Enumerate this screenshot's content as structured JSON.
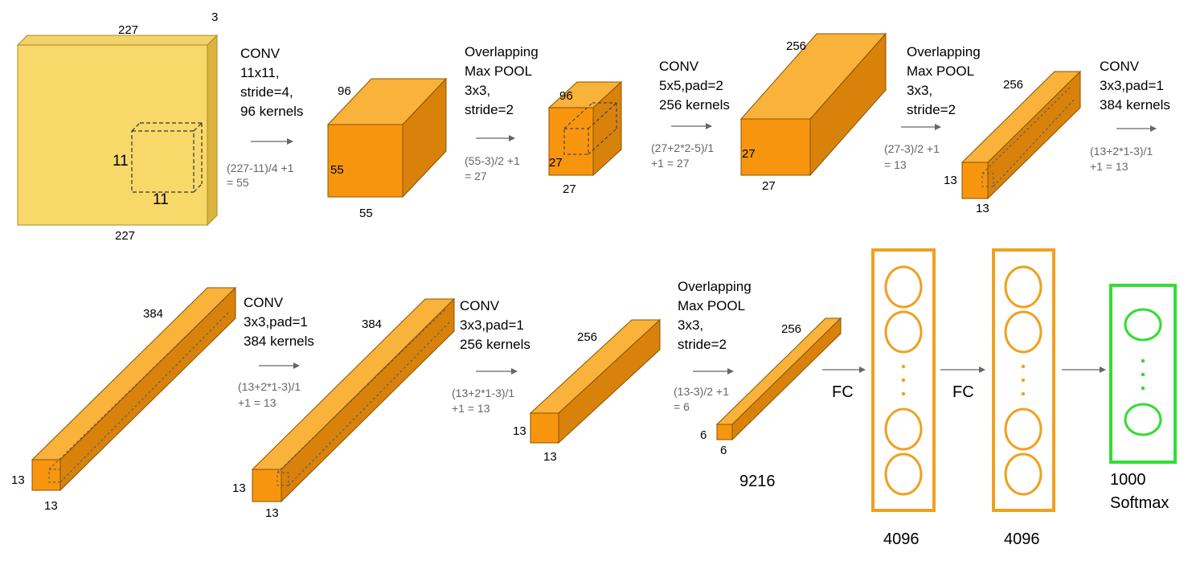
{
  "colors": {
    "input_front": "#f9d86a",
    "input_top": "#f2d36a",
    "input_side": "#d9b440",
    "box_front": "#f7960e",
    "box_top": "#f9b23a",
    "box_side": "#d8820c",
    "fc_stroke": "#f0a020",
    "softmax_stroke": "#33dd33",
    "arrow": "#666666",
    "formula_text": "#666666"
  },
  "input": {
    "width": "227",
    "height": "227",
    "depth": "3",
    "kernel_h": "11",
    "kernel_w": "11"
  },
  "step1": {
    "lines": [
      "CONV",
      "11x11,",
      "stride=4,",
      "96 kernels"
    ],
    "formula": [
      "(227-11)/4 +1",
      "= 55"
    ]
  },
  "vol1": {
    "depth": "96",
    "height": "55",
    "width": "55"
  },
  "step2": {
    "lines": [
      "Overlapping",
      "Max POOL",
      "3x3,",
      "stride=2"
    ],
    "formula": [
      "(55-3)/2 +1",
      "= 27"
    ]
  },
  "vol2": {
    "depth": "96",
    "height": "27",
    "width": "27"
  },
  "step3": {
    "lines": [
      "CONV",
      "5x5,pad=2",
      "256 kernels"
    ],
    "formula": [
      "(27+2*2-5)/1",
      "+1  = 27"
    ]
  },
  "vol3": {
    "depth": "256",
    "height": "27",
    "width": "27"
  },
  "step4": {
    "lines": [
      "Overlapping",
      "Max POOL",
      "3x3,",
      "stride=2"
    ],
    "formula": [
      "(27-3)/2 +1",
      "= 13"
    ]
  },
  "vol4": {
    "depth": "256",
    "height": "13",
    "width": "13"
  },
  "step5": {
    "lines": [
      "CONV",
      "3x3,pad=1",
      "384 kernels"
    ],
    "formula": [
      "(13+2*1-3)/1",
      "+1  = 13"
    ]
  },
  "vol5": {
    "depth": "384",
    "height": "13",
    "width": "13"
  },
  "step6": {
    "lines": [
      "CONV",
      "3x3,pad=1",
      "384 kernels"
    ],
    "formula": [
      "(13+2*1-3)/1",
      "+1  = 13"
    ]
  },
  "vol6": {
    "depth": "384",
    "height": "13",
    "width": "13"
  },
  "step7": {
    "lines": [
      "CONV",
      "3x3,pad=1",
      "256 kernels"
    ],
    "formula": [
      "(13+2*1-3)/1",
      "+1  = 13"
    ]
  },
  "vol7": {
    "depth": "256",
    "height": "13",
    "width": "13"
  },
  "step8": {
    "lines": [
      "Overlapping",
      "Max POOL",
      "3x3,",
      "stride=2"
    ],
    "formula": [
      "(13-3)/2 +1",
      "= 6"
    ]
  },
  "vol8": {
    "depth": "256",
    "height": "6",
    "width": "6",
    "flattened": "9216"
  },
  "fc1": {
    "arrow_label": "FC",
    "size": "4096"
  },
  "fc2": {
    "arrow_label": "FC",
    "size": "4096"
  },
  "softmax": {
    "lines": [
      "1000",
      "Softmax"
    ]
  }
}
